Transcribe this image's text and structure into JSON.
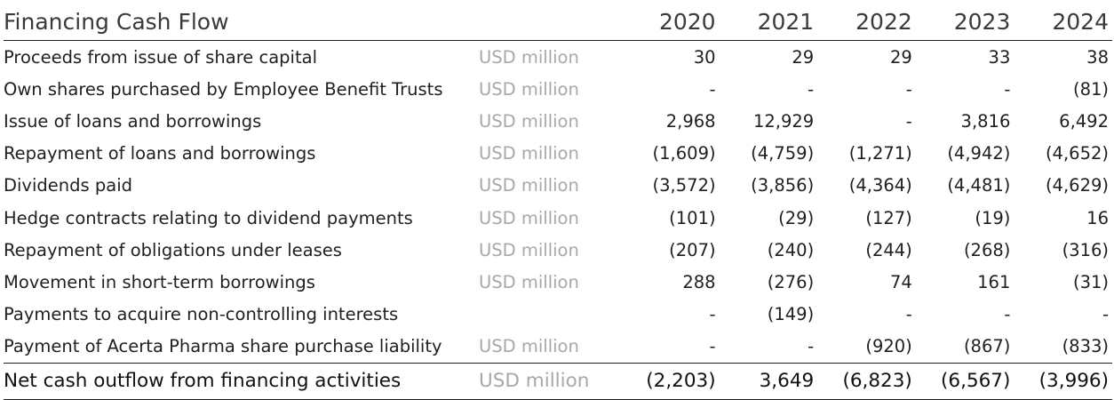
{
  "table": {
    "title": "Financing Cash Flow",
    "years": [
      "2020",
      "2021",
      "2022",
      "2023",
      "2024"
    ],
    "rows": [
      {
        "label": "Proceeds from issue of share capital",
        "unit": "USD million",
        "values": [
          "30",
          "29",
          "29",
          "33",
          "38"
        ]
      },
      {
        "label": "Own shares purchased by Employee Benefit Trusts",
        "unit": "USD million",
        "values": [
          "-",
          "-",
          "-",
          "-",
          "(81)"
        ]
      },
      {
        "label": "Issue of loans and borrowings",
        "unit": "USD million",
        "values": [
          "2,968",
          "12,929",
          "-",
          "3,816",
          "6,492"
        ]
      },
      {
        "label": "Repayment of loans and borrowings",
        "unit": "USD million",
        "values": [
          "(1,609)",
          "(4,759)",
          "(1,271)",
          "(4,942)",
          "(4,652)"
        ]
      },
      {
        "label": "Dividends paid",
        "unit": "USD million",
        "values": [
          "(3,572)",
          "(3,856)",
          "(4,364)",
          "(4,481)",
          "(4,629)"
        ]
      },
      {
        "label": "Hedge contracts relating to dividend payments",
        "unit": "USD million",
        "values": [
          "(101)",
          "(29)",
          "(127)",
          "(19)",
          "16"
        ]
      },
      {
        "label": "Repayment of obligations under leases",
        "unit": "USD million",
        "values": [
          "(207)",
          "(240)",
          "(244)",
          "(268)",
          "(316)"
        ]
      },
      {
        "label": "Movement in short-term borrowings",
        "unit": "USD million",
        "values": [
          "288",
          "(276)",
          "74",
          "161",
          "(31)"
        ]
      },
      {
        "label": "Payments to acquire non-controlling interests",
        "unit": "",
        "values": [
          "-",
          "(149)",
          "-",
          "-",
          "-"
        ]
      },
      {
        "label": "Payment of Acerta Pharma share purchase liability",
        "unit": "USD million",
        "values": [
          "-",
          "-",
          "(920)",
          "(867)",
          "(833)"
        ]
      }
    ],
    "total": {
      "label": "Net cash outflow from financing activities",
      "unit": "USD million",
      "values": [
        "(2,203)",
        "3,649",
        "(6,823)",
        "(6,567)",
        "(3,996)"
      ]
    }
  }
}
